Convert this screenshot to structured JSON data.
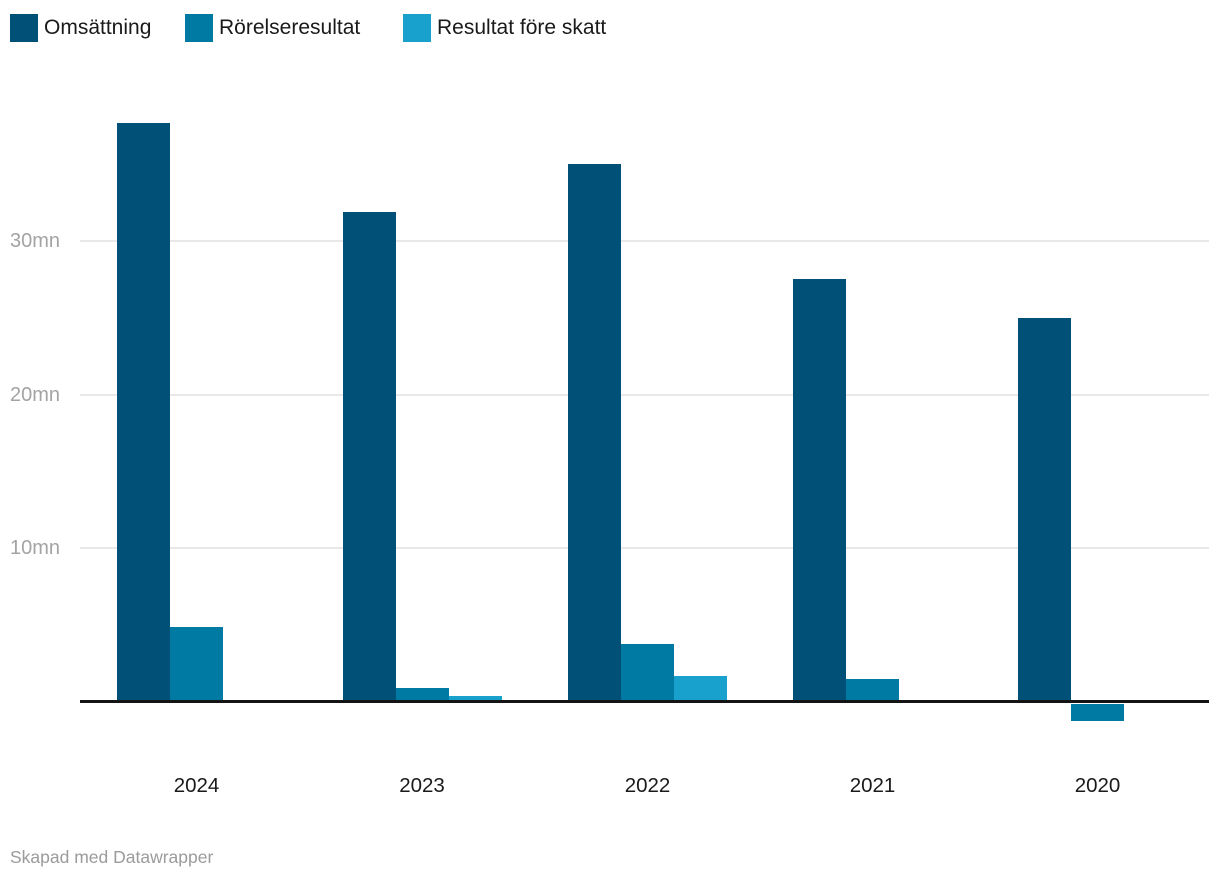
{
  "legend": {
    "items": [
      {
        "label": "Omsättning",
        "color": "#015077"
      },
      {
        "label": "Rörelseresultat",
        "color": "#0079a3"
      },
      {
        "label": "Resultat före skatt",
        "color": "#18a1cd"
      }
    ]
  },
  "chart_data": {
    "type": "bar",
    "categories": [
      "2024",
      "2023",
      "2022",
      "2021",
      "2020"
    ],
    "series": [
      {
        "name": "Omsättning",
        "color": "#015077",
        "values": [
          37.7,
          31.9,
          35.0,
          27.5,
          25.0
        ]
      },
      {
        "name": "Rörelseresultat",
        "color": "#0079a3",
        "values": [
          4.9,
          0.9,
          3.8,
          1.5,
          -1.1
        ]
      },
      {
        "name": "Resultat före skatt",
        "color": "#18a1cd",
        "values": [
          0,
          0.4,
          1.7,
          0,
          0
        ]
      }
    ],
    "unit": "mn",
    "yticks": [
      {
        "value": 10,
        "label": "10mn"
      },
      {
        "value": 20,
        "label": "20mn"
      },
      {
        "value": 30,
        "label": "30mn"
      }
    ],
    "ylim": [
      -2,
      40
    ],
    "grid": true,
    "legend_position": "top",
    "title": "",
    "xlabel": "",
    "ylabel": ""
  },
  "footer": {
    "text": "Skapad med Datawrapper"
  },
  "colors": {
    "axis": "#141414",
    "gridline": "#e8e8e8",
    "tick_label": "#a3a3a3",
    "category_label": "#1a1a1a",
    "footer_text": "#9b9b9b",
    "background": "#ffffff"
  }
}
